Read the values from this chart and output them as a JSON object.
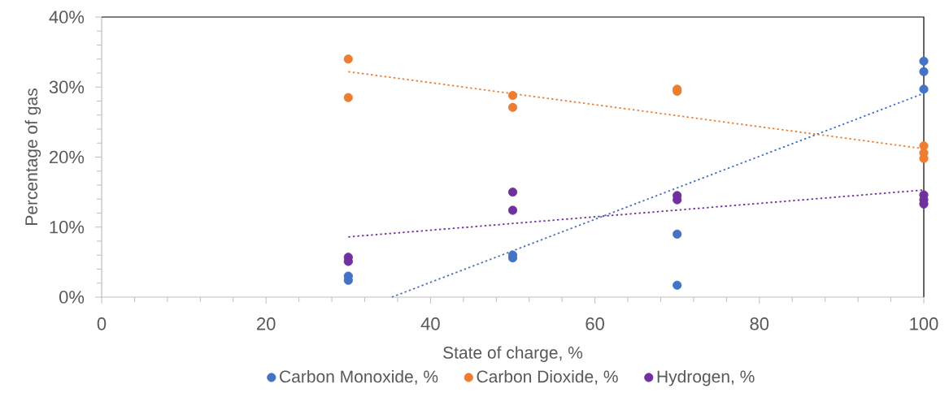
{
  "chart_data": {
    "type": "scatter",
    "xlabel": "State of charge, %",
    "ylabel": "Percentage of gas",
    "xlim": [
      0,
      100
    ],
    "xticks": [
      0,
      20,
      40,
      60,
      80,
      100
    ],
    "ylim": [
      0,
      40
    ],
    "yticks": [
      {
        "value": 0,
        "label": "0%"
      },
      {
        "value": 10,
        "label": "10%"
      },
      {
        "value": 20,
        "label": "20%"
      },
      {
        "value": 30,
        "label": "30%"
      },
      {
        "value": 40,
        "label": "40%"
      }
    ],
    "grid": false,
    "legend": "bottom",
    "marker": "circle",
    "series": [
      {
        "name": "Carbon Monoxide, %",
        "color": "#4472c4",
        "x": [
          30,
          30,
          50,
          50,
          70,
          70,
          100,
          100,
          100
        ],
        "values": [
          3.0,
          2.4,
          6.0,
          5.6,
          9.0,
          1.7,
          33.7,
          32.2,
          29.7
        ]
      },
      {
        "name": "Carbon Dioxide, %",
        "color": "#ed7d31",
        "x": [
          30,
          30,
          50,
          50,
          70,
          70,
          100,
          100,
          100
        ],
        "values": [
          34.0,
          28.5,
          28.8,
          27.1,
          29.7,
          29.4,
          21.6,
          20.6,
          19.8
        ]
      },
      {
        "name": "Hydrogen, %",
        "color": "#7030a0",
        "x": [
          30,
          30,
          50,
          50,
          70,
          70,
          100,
          100,
          100
        ],
        "values": [
          5.7,
          5.1,
          15.0,
          12.4,
          14.5,
          13.9,
          14.6,
          13.9,
          13.3
        ]
      },
      {
        "type": "line",
        "line_style": "dotted",
        "marker": "none",
        "color": "#4472c4",
        "x": [
          35.3,
          100
        ],
        "values": [
          0,
          29.1
        ]
      },
      {
        "type": "line",
        "line_style": "dotted",
        "marker": "none",
        "color": "#ed7d31",
        "x": [
          30,
          100
        ],
        "values": [
          32.2,
          21.2
        ]
      },
      {
        "type": "line",
        "line_style": "dotted",
        "marker": "none",
        "color": "#7030a0",
        "x": [
          30,
          100
        ],
        "values": [
          8.6,
          15.3
        ]
      }
    ]
  }
}
